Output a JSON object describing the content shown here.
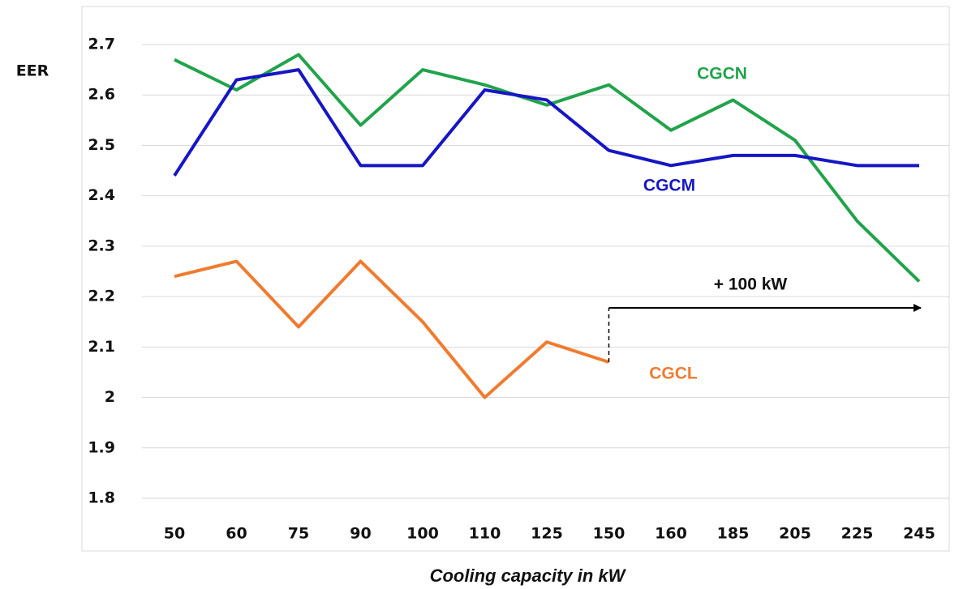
{
  "chart_data": {
    "type": "line",
    "y_label": "EER",
    "x_label": "Cooling capacity in kW",
    "annotations": [
      "+ 100 kW"
    ],
    "categories": [
      "50",
      "60",
      "75",
      "90",
      "100",
      "110",
      "125",
      "150",
      "160",
      "185",
      "205",
      "225",
      "245"
    ],
    "series": [
      {
        "name": "CGCN",
        "color": "#21a34b",
        "values": [
          2.67,
          2.61,
          2.68,
          2.54,
          2.65,
          2.62,
          2.58,
          2.62,
          2.53,
          2.59,
          2.51,
          2.35,
          2.23
        ]
      },
      {
        "name": "CGCM",
        "color": "#1616c4",
        "values": [
          2.44,
          2.63,
          2.65,
          2.46,
          2.46,
          2.61,
          2.59,
          2.49,
          2.46,
          2.48,
          2.48,
          2.46,
          2.46
        ]
      },
      {
        "name": "CGCL",
        "color": "#f07b2f",
        "values": [
          2.24,
          2.27,
          2.14,
          2.27,
          2.15,
          2.0,
          2.11,
          2.07,
          null,
          null,
          null,
          null,
          null
        ]
      }
    ],
    "ylim": [
      1.8,
      2.7
    ],
    "yticks": [
      1.8,
      1.9,
      2,
      2.1,
      2.2,
      2.3,
      2.4,
      2.5,
      2.6,
      2.7
    ],
    "grid": true
  }
}
